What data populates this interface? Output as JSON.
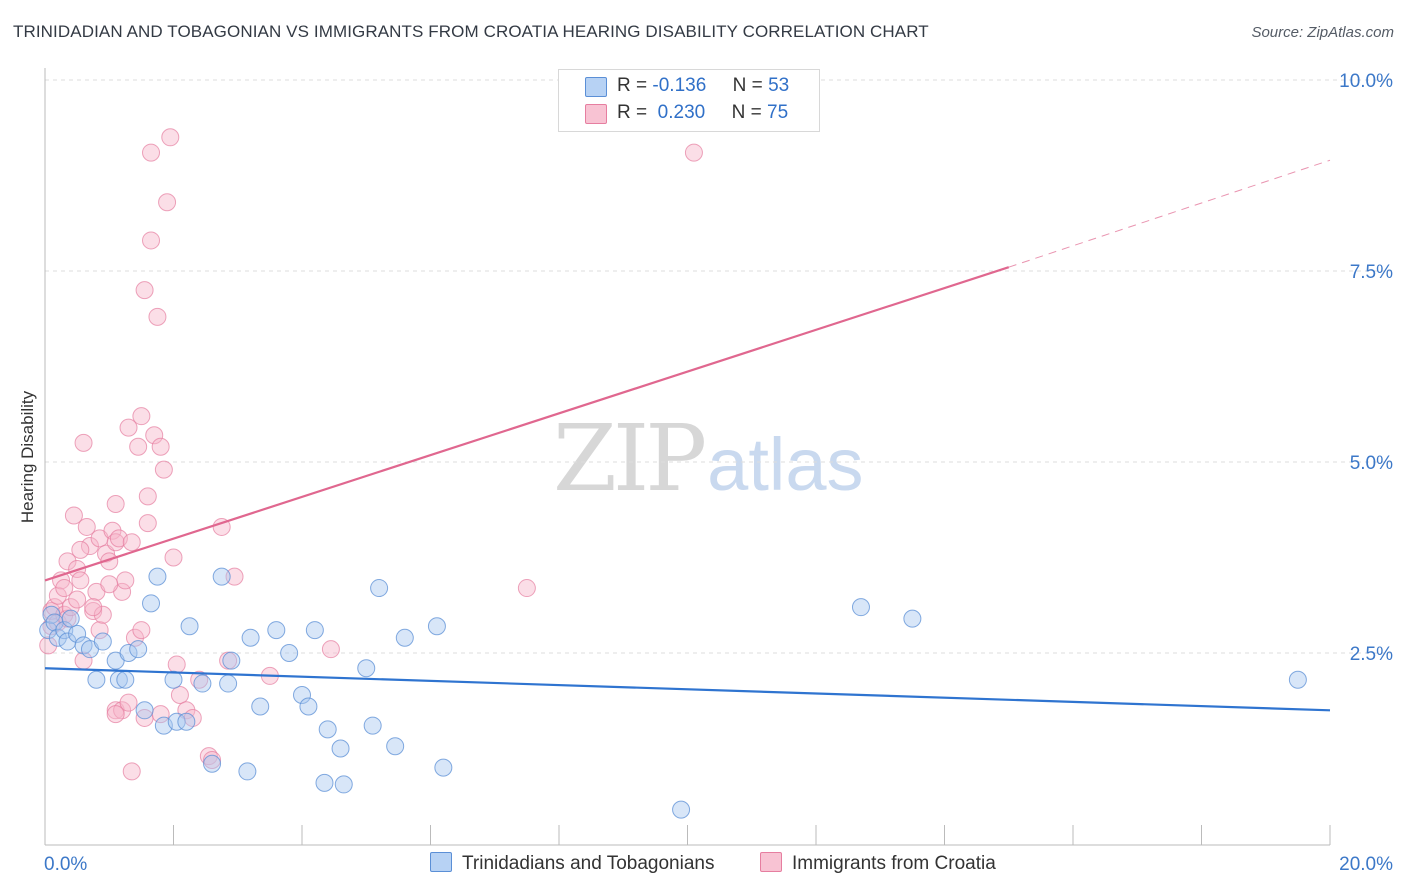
{
  "title": "TRINIDADIAN AND TOBAGONIAN VS IMMIGRANTS FROM CROATIA HEARING DISABILITY CORRELATION CHART",
  "source": "Source: ZipAtlas.com",
  "watermark": {
    "zip": "ZIP",
    "atlas": "atlas"
  },
  "legend": {
    "rows": [
      {
        "r_label": "R =",
        "r_value": "-0.136",
        "n_label": "N =",
        "n_value": "53"
      },
      {
        "r_label": "R =",
        "r_value": " 0.230",
        "n_label": "N =",
        "n_value": "75"
      }
    ]
  },
  "bottom_legend": [
    "Trinidadians and Tobagonians",
    "Immigrants from Croatia"
  ],
  "colors": {
    "blue_fill": "#a9c8f0",
    "blue_stroke": "#5b8fd6",
    "blue_line": "#2f74d0",
    "pink_fill": "#f6b6c9",
    "pink_stroke": "#e67ea0",
    "pink_line": "#e0678f",
    "axis_label": "#3c78c8",
    "grid": "#dddddd"
  },
  "chart_data": {
    "type": "scatter",
    "title": "TRINIDADIAN AND TOBAGONIAN VS IMMIGRANTS FROM CROATIA HEARING DISABILITY CORRELATION CHART",
    "xlabel": "",
    "ylabel": "Hearing Disability",
    "xlim": [
      0,
      20
    ],
    "ylim": [
      0,
      10
    ],
    "x_tick_labels": [
      "0.0%",
      "20.0%"
    ],
    "y_ticks": [
      2.5,
      5.0,
      7.5,
      10.0
    ],
    "y_tick_labels": [
      "2.5%",
      "5.0%",
      "7.5%",
      "10.0%"
    ],
    "grid": true,
    "legend_position": "top-center",
    "series": [
      {
        "name": "Trinidadians and Tobagonians",
        "color": "#a9c8f0",
        "R": -0.136,
        "N": 53,
        "trend": {
          "x0": 0,
          "y0": 2.3,
          "x1": 20,
          "y1": 1.75
        },
        "points": [
          [
            0.05,
            2.8
          ],
          [
            0.1,
            3.0
          ],
          [
            0.15,
            2.9
          ],
          [
            0.2,
            2.7
          ],
          [
            0.3,
            2.8
          ],
          [
            0.35,
            2.65
          ],
          [
            0.5,
            2.75
          ],
          [
            0.6,
            2.6
          ],
          [
            0.7,
            2.55
          ],
          [
            0.8,
            2.15
          ],
          [
            0.9,
            2.65
          ],
          [
            1.1,
            2.4
          ],
          [
            1.15,
            2.15
          ],
          [
            1.25,
            2.15
          ],
          [
            1.3,
            2.5
          ],
          [
            1.45,
            2.55
          ],
          [
            1.55,
            1.75
          ],
          [
            1.75,
            3.5
          ],
          [
            1.65,
            3.15
          ],
          [
            1.85,
            1.55
          ],
          [
            2.0,
            2.15
          ],
          [
            2.05,
            1.6
          ],
          [
            2.2,
            1.6
          ],
          [
            2.25,
            2.85
          ],
          [
            2.45,
            2.1
          ],
          [
            2.6,
            1.05
          ],
          [
            2.75,
            3.5
          ],
          [
            2.85,
            2.1
          ],
          [
            2.9,
            2.4
          ],
          [
            3.15,
            0.95
          ],
          [
            3.2,
            2.7
          ],
          [
            3.35,
            1.8
          ],
          [
            3.6,
            2.8
          ],
          [
            3.8,
            2.5
          ],
          [
            4.0,
            1.95
          ],
          [
            4.1,
            1.8
          ],
          [
            4.2,
            2.8
          ],
          [
            4.35,
            0.8
          ],
          [
            4.4,
            1.5
          ],
          [
            4.6,
            1.25
          ],
          [
            4.65,
            0.78
          ],
          [
            5.0,
            2.3
          ],
          [
            5.1,
            1.55
          ],
          [
            5.2,
            3.35
          ],
          [
            5.45,
            1.28
          ],
          [
            5.6,
            2.7
          ],
          [
            6.1,
            2.85
          ],
          [
            6.2,
            1.0
          ],
          [
            9.9,
            0.45
          ],
          [
            12.7,
            3.1
          ],
          [
            13.5,
            2.95
          ],
          [
            19.5,
            2.15
          ],
          [
            0.4,
            2.95
          ]
        ]
      },
      {
        "name": "Immigrants from Croatia",
        "color": "#f6b6c9",
        "R": 0.23,
        "N": 75,
        "trend": {
          "x0": 0,
          "y0": 3.45,
          "x1": 15.0,
          "y1": 7.55
        },
        "trend_dashed_extension": {
          "x0": 15.0,
          "y0": 7.55,
          "x1": 20,
          "y1": 8.95
        },
        "points": [
          [
            0.05,
            2.6
          ],
          [
            0.1,
            2.85
          ],
          [
            0.1,
            3.05
          ],
          [
            0.15,
            3.1
          ],
          [
            0.2,
            3.25
          ],
          [
            0.2,
            2.9
          ],
          [
            0.25,
            3.45
          ],
          [
            0.3,
            3.0
          ],
          [
            0.35,
            3.7
          ],
          [
            0.35,
            2.95
          ],
          [
            0.4,
            3.1
          ],
          [
            0.45,
            4.3
          ],
          [
            0.5,
            3.6
          ],
          [
            0.5,
            3.2
          ],
          [
            0.55,
            3.45
          ],
          [
            0.6,
            2.4
          ],
          [
            0.6,
            5.25
          ],
          [
            0.65,
            4.15
          ],
          [
            0.7,
            3.9
          ],
          [
            0.75,
            3.05
          ],
          [
            0.8,
            3.3
          ],
          [
            0.85,
            4.0
          ],
          [
            0.85,
            2.8
          ],
          [
            0.9,
            3.0
          ],
          [
            0.95,
            3.8
          ],
          [
            1.0,
            3.7
          ],
          [
            1.05,
            4.1
          ],
          [
            1.1,
            4.45
          ],
          [
            1.1,
            3.95
          ],
          [
            1.15,
            4.0
          ],
          [
            1.2,
            3.3
          ],
          [
            1.25,
            3.45
          ],
          [
            1.3,
            5.45
          ],
          [
            1.35,
            3.95
          ],
          [
            1.4,
            2.7
          ],
          [
            1.45,
            5.2
          ],
          [
            1.5,
            5.6
          ],
          [
            1.55,
            7.25
          ],
          [
            1.6,
            4.2
          ],
          [
            1.6,
            4.55
          ],
          [
            1.65,
            9.05
          ],
          [
            1.65,
            7.9
          ],
          [
            1.7,
            5.35
          ],
          [
            1.75,
            6.9
          ],
          [
            1.8,
            5.2
          ],
          [
            1.85,
            4.9
          ],
          [
            1.9,
            8.4
          ],
          [
            1.95,
            9.25
          ],
          [
            2.0,
            3.75
          ],
          [
            2.05,
            2.35
          ],
          [
            2.1,
            1.95
          ],
          [
            2.2,
            1.75
          ],
          [
            2.3,
            1.65
          ],
          [
            2.4,
            2.15
          ],
          [
            2.55,
            1.15
          ],
          [
            2.6,
            1.1
          ],
          [
            2.75,
            4.15
          ],
          [
            2.85,
            2.4
          ],
          [
            2.95,
            3.5
          ],
          [
            1.1,
            1.75
          ],
          [
            1.2,
            1.75
          ],
          [
            1.3,
            1.85
          ],
          [
            1.35,
            0.95
          ],
          [
            1.1,
            1.7
          ],
          [
            1.5,
            2.8
          ],
          [
            1.55,
            1.65
          ],
          [
            1.8,
            1.7
          ],
          [
            3.5,
            2.2
          ],
          [
            4.45,
            2.55
          ],
          [
            7.5,
            3.35
          ],
          [
            10.1,
            9.05
          ],
          [
            0.3,
            3.35
          ],
          [
            0.75,
            3.1
          ],
          [
            1.0,
            3.4
          ],
          [
            0.55,
            3.85
          ]
        ]
      }
    ]
  }
}
